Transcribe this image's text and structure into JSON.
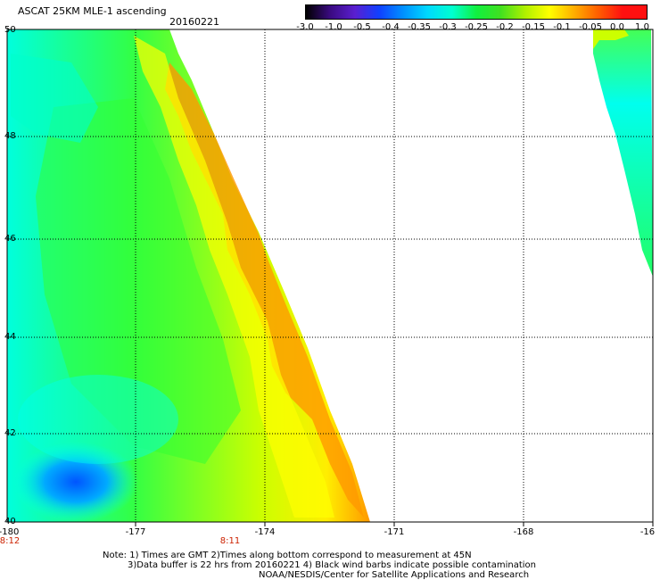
{
  "header": {
    "title": "ASCAT 25KM MLE-1 ascending",
    "date": "20160221"
  },
  "colorbar": {
    "ticks": [
      "-3.0",
      "-1.0",
      "-0.5",
      "-0.4",
      "-0.35",
      "-0.3",
      "-0.25",
      "-0.2",
      "-0.15",
      "-0.1",
      "-0.05",
      "0.0",
      "1.0"
    ],
    "colors": [
      "#000000",
      "#3a0a80",
      "#5a1fd0",
      "#1040ff",
      "#0090ff",
      "#00d8ff",
      "#00ffd0",
      "#10f040",
      "#40e020",
      "#b0f000",
      "#ffff00",
      "#ffb000",
      "#ff6000",
      "#ff1010"
    ]
  },
  "axes": {
    "lat_labels": [
      "50",
      "48",
      "46",
      "44",
      "42",
      "40"
    ],
    "lon_labels": [
      "-180",
      "-177",
      "-174",
      "-171",
      "-168",
      "-16"
    ]
  },
  "time_labels": [
    "8:12",
    "8:11"
  ],
  "notes": {
    "line1": "Note: 1) Times are GMT 2)Times along bottom correspond to measurement at 45N",
    "line2": "3)Data buffer is 22 hrs from 20160221 4) Black wind barbs indicate possible contamination",
    "line3": "NOAA/NESDIS/Center for Satellite Applications and Research"
  },
  "colors": {
    "cyan": "#00ffff",
    "green": "#22ff33",
    "yellow": "#ffff00",
    "orange": "#ff8800",
    "blue": "#0066ff"
  }
}
